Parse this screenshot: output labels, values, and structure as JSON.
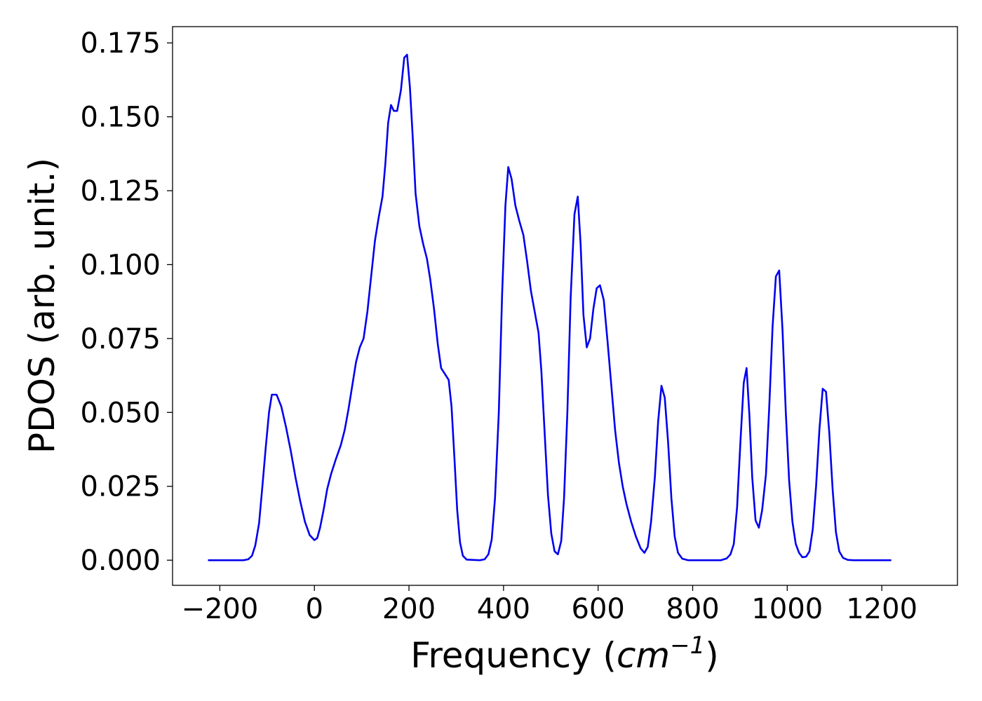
{
  "chart_data": {
    "type": "line",
    "xlabel": "Frequency",
    "xlabel_unit_base": "cm",
    "xlabel_unit_exp": "−1",
    "ylabel": "PDOS (arb. unit.)",
    "xlim": [
      -300,
      1360
    ],
    "ylim": [
      -0.0085,
      0.1805
    ],
    "grid": false,
    "x_ticks": [
      {
        "value": -200,
        "label": "−200"
      },
      {
        "value": 0,
        "label": "0"
      },
      {
        "value": 200,
        "label": "200"
      },
      {
        "value": 400,
        "label": "400"
      },
      {
        "value": 600,
        "label": "600"
      },
      {
        "value": 800,
        "label": "800"
      },
      {
        "value": 1000,
        "label": "1000"
      },
      {
        "value": 1200,
        "label": "1200"
      }
    ],
    "y_ticks": [
      {
        "value": 0.0,
        "label": "0.000"
      },
      {
        "value": 0.025,
        "label": "0.025"
      },
      {
        "value": 0.05,
        "label": "0.050"
      },
      {
        "value": 0.075,
        "label": "0.075"
      },
      {
        "value": 0.1,
        "label": "0.100"
      },
      {
        "value": 0.125,
        "label": "0.125"
      },
      {
        "value": 0.15,
        "label": "0.150"
      },
      {
        "value": 0.175,
        "label": "0.175"
      }
    ],
    "series": [
      {
        "color": "#0000ee",
        "points": [
          [
            -225,
            0
          ],
          [
            -150,
            0
          ],
          [
            -140,
            0.0003
          ],
          [
            -132,
            0.0015
          ],
          [
            -125,
            0.005
          ],
          [
            -117,
            0.0125
          ],
          [
            -110,
            0.025
          ],
          [
            -103,
            0.038
          ],
          [
            -96,
            0.05
          ],
          [
            -90,
            0.056
          ],
          [
            -80,
            0.056
          ],
          [
            -70,
            0.052
          ],
          [
            -60,
            0.045
          ],
          [
            -50,
            0.037
          ],
          [
            -40,
            0.028
          ],
          [
            -30,
            0.02
          ],
          [
            -20,
            0.013
          ],
          [
            -10,
            0.0085
          ],
          [
            0,
            0.0068
          ],
          [
            6,
            0.0075
          ],
          [
            12,
            0.011
          ],
          [
            20,
            0.0175
          ],
          [
            27,
            0.024
          ],
          [
            35,
            0.029
          ],
          [
            45,
            0.034
          ],
          [
            56,
            0.039
          ],
          [
            64,
            0.044
          ],
          [
            72,
            0.051
          ],
          [
            80,
            0.059
          ],
          [
            88,
            0.067
          ],
          [
            96,
            0.072
          ],
          [
            104,
            0.075
          ],
          [
            112,
            0.084
          ],
          [
            120,
            0.096
          ],
          [
            128,
            0.108
          ],
          [
            136,
            0.116
          ],
          [
            144,
            0.123
          ],
          [
            150,
            0.134
          ],
          [
            156,
            0.148
          ],
          [
            162,
            0.154
          ],
          [
            168,
            0.152
          ],
          [
            175,
            0.152
          ],
          [
            183,
            0.159
          ],
          [
            190,
            0.17
          ],
          [
            196,
            0.171
          ],
          [
            202,
            0.16
          ],
          [
            208,
            0.143
          ],
          [
            214,
            0.124
          ],
          [
            222,
            0.113
          ],
          [
            230,
            0.107
          ],
          [
            238,
            0.102
          ],
          [
            245,
            0.095
          ],
          [
            253,
            0.085
          ],
          [
            261,
            0.073
          ],
          [
            268,
            0.065
          ],
          [
            276,
            0.063
          ],
          [
            284,
            0.061
          ],
          [
            290,
            0.052
          ],
          [
            296,
            0.035
          ],
          [
            302,
            0.017
          ],
          [
            308,
            0.006
          ],
          [
            314,
            0.0015
          ],
          [
            322,
            0.0002
          ],
          [
            350,
            0
          ],
          [
            360,
            0.0003
          ],
          [
            368,
            0.002
          ],
          [
            375,
            0.007
          ],
          [
            382,
            0.021
          ],
          [
            390,
            0.05
          ],
          [
            397,
            0.09
          ],
          [
            404,
            0.12
          ],
          [
            410,
            0.133
          ],
          [
            417,
            0.129
          ],
          [
            425,
            0.12
          ],
          [
            433,
            0.115
          ],
          [
            442,
            0.11
          ],
          [
            450,
            0.101
          ],
          [
            458,
            0.091
          ],
          [
            466,
            0.084
          ],
          [
            474,
            0.077
          ],
          [
            480,
            0.064
          ],
          [
            487,
            0.043
          ],
          [
            494,
            0.022
          ],
          [
            501,
            0.009
          ],
          [
            508,
            0.003
          ],
          [
            515,
            0.002
          ],
          [
            522,
            0.0065
          ],
          [
            528,
            0.021
          ],
          [
            535,
            0.05
          ],
          [
            542,
            0.089
          ],
          [
            550,
            0.117
          ],
          [
            557,
            0.123
          ],
          [
            563,
            0.107
          ],
          [
            569,
            0.083
          ],
          [
            576,
            0.072
          ],
          [
            583,
            0.075
          ],
          [
            590,
            0.085
          ],
          [
            597,
            0.092
          ],
          [
            604,
            0.093
          ],
          [
            612,
            0.088
          ],
          [
            620,
            0.074
          ],
          [
            628,
            0.059
          ],
          [
            636,
            0.044
          ],
          [
            644,
            0.033
          ],
          [
            652,
            0.025
          ],
          [
            660,
            0.019
          ],
          [
            670,
            0.013
          ],
          [
            680,
            0.008
          ],
          [
            690,
            0.004
          ],
          [
            698,
            0.0025
          ],
          [
            705,
            0.0045
          ],
          [
            712,
            0.013
          ],
          [
            720,
            0.028
          ],
          [
            727,
            0.047
          ],
          [
            734,
            0.059
          ],
          [
            741,
            0.055
          ],
          [
            748,
            0.04
          ],
          [
            755,
            0.021
          ],
          [
            762,
            0.008
          ],
          [
            769,
            0.0025
          ],
          [
            778,
            0.0005
          ],
          [
            790,
            0
          ],
          [
            860,
            0
          ],
          [
            872,
            0.0006
          ],
          [
            880,
            0.002
          ],
          [
            887,
            0.0055
          ],
          [
            894,
            0.018
          ],
          [
            901,
            0.04
          ],
          [
            908,
            0.06
          ],
          [
            914,
            0.065
          ],
          [
            920,
            0.049
          ],
          [
            926,
            0.028
          ],
          [
            933,
            0.0135
          ],
          [
            940,
            0.011
          ],
          [
            947,
            0.017
          ],
          [
            955,
            0.029
          ],
          [
            962,
            0.052
          ],
          [
            969,
            0.079
          ],
          [
            976,
            0.096
          ],
          [
            983,
            0.098
          ],
          [
            990,
            0.078
          ],
          [
            997,
            0.05
          ],
          [
            1004,
            0.027
          ],
          [
            1011,
            0.013
          ],
          [
            1018,
            0.0055
          ],
          [
            1025,
            0.0025
          ],
          [
            1032,
            0.001
          ],
          [
            1040,
            0.0012
          ],
          [
            1047,
            0.003
          ],
          [
            1054,
            0.0105
          ],
          [
            1061,
            0.025
          ],
          [
            1068,
            0.044
          ],
          [
            1075,
            0.058
          ],
          [
            1082,
            0.057
          ],
          [
            1089,
            0.043
          ],
          [
            1096,
            0.024
          ],
          [
            1103,
            0.0095
          ],
          [
            1110,
            0.003
          ],
          [
            1118,
            0.0008
          ],
          [
            1128,
            0.0001
          ],
          [
            1140,
            0
          ],
          [
            1220,
            0
          ]
        ]
      }
    ]
  }
}
